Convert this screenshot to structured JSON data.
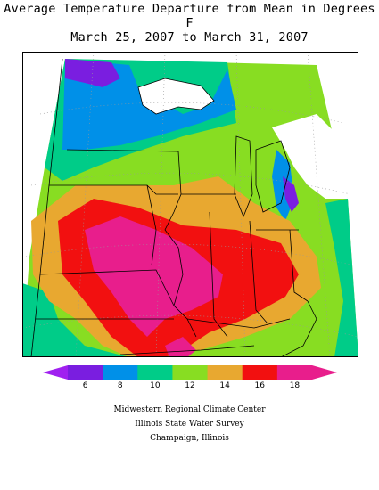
{
  "title": {
    "line1": "Average Temperature Departure from Mean in Degrees F",
    "line2": "March 25, 2007 to March 31, 2007"
  },
  "legend": {
    "colors": [
      "#a020f0",
      "#7a1ee0",
      "#0090e8",
      "#00cc88",
      "#88dd22",
      "#e8a830",
      "#f21010",
      "#e81e8c",
      "#e81e8c"
    ],
    "ticks": [
      "6",
      "8",
      "10",
      "12",
      "14",
      "16",
      "18"
    ]
  },
  "credits": {
    "line1": "Midwestern Regional Climate Center",
    "line2": "Illinois State Water Survey",
    "line3": "Champaign, Illinois"
  }
}
